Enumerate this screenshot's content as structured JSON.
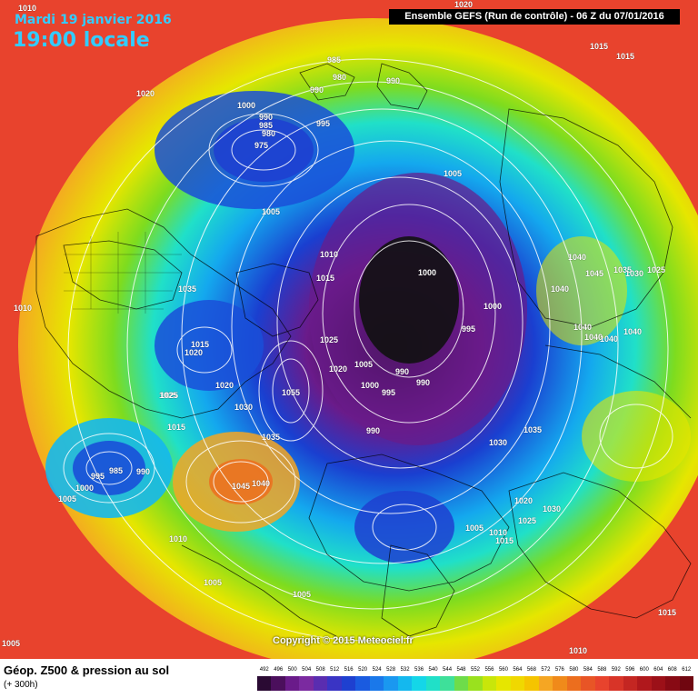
{
  "header": {
    "date": "Mardi 19 janvier 2016",
    "local_time": "19:00 locale",
    "model_run": "Ensemble GEFS  (Run de contrôle)  -  06 Z du 07/01/2016"
  },
  "corner_label": "1010",
  "map": {
    "description_colors": {
      "outer": "#e8432d",
      "warm": "#f5a623",
      "mid": "#e6e600",
      "green": "#7ddc1f",
      "cyan": "#14d6e8",
      "blue": "#1a4fd8",
      "purple": "#6a1b8a",
      "core": "#111111"
    },
    "isobar_labels": [
      {
        "text": "1020"
      },
      {
        "text": "1015"
      },
      {
        "text": "1015"
      },
      {
        "text": "1020"
      },
      {
        "text": "985"
      },
      {
        "text": "980"
      },
      {
        "text": "990"
      },
      {
        "text": "990"
      },
      {
        "text": "1000"
      },
      {
        "text": "990"
      },
      {
        "text": "985"
      },
      {
        "text": "980"
      },
      {
        "text": "975"
      },
      {
        "text": "995"
      },
      {
        "text": "1005"
      },
      {
        "text": "1005"
      },
      {
        "text": "1010"
      },
      {
        "text": "1015"
      },
      {
        "text": "1000"
      },
      {
        "text": "995"
      },
      {
        "text": "1000"
      },
      {
        "text": "1035"
      },
      {
        "text": "1015"
      },
      {
        "text": "1020"
      },
      {
        "text": "1020"
      },
      {
        "text": "1025"
      },
      {
        "text": "1030"
      },
      {
        "text": "1055"
      },
      {
        "text": "1025"
      },
      {
        "text": "1020"
      },
      {
        "text": "1005"
      },
      {
        "text": "1000"
      },
      {
        "text": "995"
      },
      {
        "text": "990"
      },
      {
        "text": "990"
      },
      {
        "text": "990"
      },
      {
        "text": "1035"
      },
      {
        "text": "1030"
      },
      {
        "text": "1040"
      },
      {
        "text": "1045"
      },
      {
        "text": "1035"
      },
      {
        "text": "1030"
      },
      {
        "text": "1025"
      },
      {
        "text": "1040"
      },
      {
        "text": "1040"
      },
      {
        "text": "1040"
      },
      {
        "text": "1040"
      },
      {
        "text": "1040"
      },
      {
        "text": "1010"
      },
      {
        "text": "1025"
      },
      {
        "text": "1015"
      },
      {
        "text": "995"
      },
      {
        "text": "985"
      },
      {
        "text": "990"
      },
      {
        "text": "1000"
      },
      {
        "text": "1005"
      },
      {
        "text": "1045"
      },
      {
        "text": "1040"
      },
      {
        "text": "1035"
      },
      {
        "text": "1010"
      },
      {
        "text": "1005"
      },
      {
        "text": "1005"
      },
      {
        "text": "1020"
      },
      {
        "text": "1030"
      },
      {
        "text": "1025"
      },
      {
        "text": "1005"
      },
      {
        "text": "1010"
      },
      {
        "text": "1015"
      },
      {
        "text": "1015"
      },
      {
        "text": "1010"
      },
      {
        "text": "1005"
      }
    ]
  },
  "copyright": "Copyright © 2015 Meteociel.fr",
  "footer": {
    "title": "Géop. Z500 & pression au sol",
    "forecast_hour": "(+ 300h)",
    "legend_values": [
      "492",
      "496",
      "500",
      "504",
      "508",
      "512",
      "516",
      "520",
      "524",
      "528",
      "532",
      "536",
      "540",
      "544",
      "548",
      "552",
      "556",
      "560",
      "564",
      "568",
      "572",
      "576",
      "580",
      "584",
      "588",
      "592",
      "596",
      "600",
      "604",
      "608",
      "612"
    ],
    "legend_colors": [
      "#2a0a33",
      "#4b0f5c",
      "#6a1b8a",
      "#7b2aa0",
      "#5a2db0",
      "#3a34c4",
      "#1e40d0",
      "#1a5be0",
      "#1a78ea",
      "#1a98f0",
      "#14b8ee",
      "#14d6e8",
      "#20e0c8",
      "#3ee09a",
      "#6edc4a",
      "#9ae11e",
      "#c8e60a",
      "#e6e600",
      "#f0d800",
      "#f5c400",
      "#f5a623",
      "#f08a1a",
      "#ec6e1e",
      "#e85526",
      "#e8432d",
      "#d83428",
      "#c42622",
      "#b0181c",
      "#9c1018",
      "#880a14",
      "#700610"
    ]
  }
}
